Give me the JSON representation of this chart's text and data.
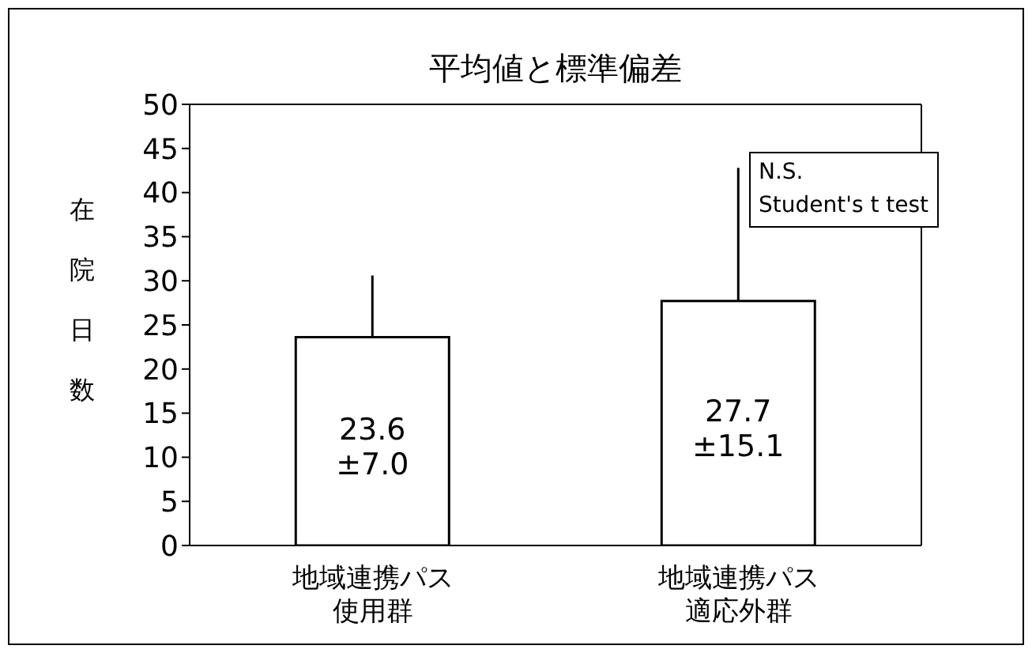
{
  "chart_data": {
    "type": "bar",
    "title": "平均値と標準偏差",
    "ylabel": "在院日数",
    "categories": [
      "地域連携パス使用群",
      "地域連携パス適応外群"
    ],
    "values": [
      23.6,
      27.7
    ],
    "color": "#ffffff",
    "errors": [
      [
        23.6,
        30.6
      ],
      [
        27.7,
        42.8
      ]
    ],
    "value_labels": [
      "23.6\n±7.0",
      "27.7\n±15.1"
    ],
    "ylim": [
      0,
      50
    ],
    "yticks": [
      0,
      5,
      10,
      15,
      20,
      25,
      30,
      35,
      40,
      45,
      50
    ],
    "grid": false,
    "legend": false,
    "annotations": [
      "N.S.\nStudent's t test"
    ]
  }
}
